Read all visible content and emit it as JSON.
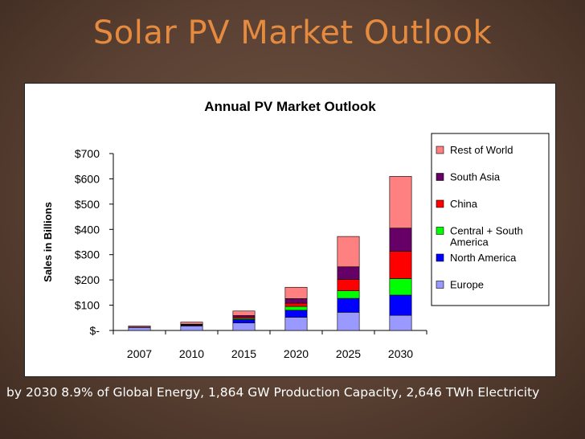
{
  "slide": {
    "title": "Solar PV Market Outlook",
    "caption": "by 2030 8.9% of Global Energy, 1,864 GW Production Capacity, 2,646 TWh Electricity"
  },
  "chart_data": {
    "type": "bar",
    "stacked": true,
    "title": "Annual PV Market Outlook",
    "xlabel": "",
    "ylabel": "Sales in Billions",
    "ylim": [
      0,
      700
    ],
    "ytick_labels": [
      "$-",
      "$100",
      "$200",
      "$300",
      "$400",
      "$500",
      "$600",
      "$700"
    ],
    "categories": [
      "2007",
      "2010",
      "2015",
      "2020",
      "2025",
      "2030"
    ],
    "legend_position": "right",
    "series": [
      {
        "name": "Europe",
        "color": "#9999ff",
        "values": [
          12,
          18,
          30,
          52,
          72,
          60
        ]
      },
      {
        "name": "North America",
        "color": "#0000ff",
        "values": [
          1,
          3,
          13,
          28,
          55,
          80
        ]
      },
      {
        "name": "Central + South America",
        "color": "#00ff00",
        "values": [
          0,
          1,
          4,
          15,
          30,
          65
        ]
      },
      {
        "name": "China",
        "color": "#ff0000",
        "values": [
          0,
          2,
          5,
          13,
          45,
          108
        ]
      },
      {
        "name": "South Asia",
        "color": "#660066",
        "values": [
          0,
          1,
          7,
          18,
          50,
          92
        ]
      },
      {
        "name": "Rest of World",
        "color": "#ff8080",
        "values": [
          5,
          8,
          18,
          45,
          120,
          205
        ]
      }
    ]
  }
}
